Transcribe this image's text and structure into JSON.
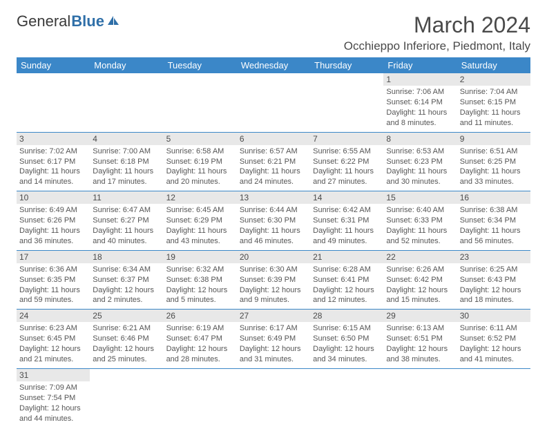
{
  "logo": {
    "text_general": "General",
    "text_blue": "Blue"
  },
  "title": "March 2024",
  "location": "Occhieppo Inferiore, Piedmont, Italy",
  "colors": {
    "header_bg": "#3b87c8",
    "header_text": "#ffffff",
    "daynum_bg": "#e8e8e8",
    "row_border": "#3b87c8",
    "body_text": "#555555",
    "title_text": "#4a4a4a"
  },
  "days_of_week": [
    "Sunday",
    "Monday",
    "Tuesday",
    "Wednesday",
    "Thursday",
    "Friday",
    "Saturday"
  ],
  "cells": [
    {
      "empty": true
    },
    {
      "empty": true
    },
    {
      "empty": true
    },
    {
      "empty": true
    },
    {
      "empty": true
    },
    {
      "day": "1",
      "sunrise": "Sunrise: 7:06 AM",
      "sunset": "Sunset: 6:14 PM",
      "daylight1": "Daylight: 11 hours",
      "daylight2": "and 8 minutes."
    },
    {
      "day": "2",
      "sunrise": "Sunrise: 7:04 AM",
      "sunset": "Sunset: 6:15 PM",
      "daylight1": "Daylight: 11 hours",
      "daylight2": "and 11 minutes."
    },
    {
      "day": "3",
      "sunrise": "Sunrise: 7:02 AM",
      "sunset": "Sunset: 6:17 PM",
      "daylight1": "Daylight: 11 hours",
      "daylight2": "and 14 minutes."
    },
    {
      "day": "4",
      "sunrise": "Sunrise: 7:00 AM",
      "sunset": "Sunset: 6:18 PM",
      "daylight1": "Daylight: 11 hours",
      "daylight2": "and 17 minutes."
    },
    {
      "day": "5",
      "sunrise": "Sunrise: 6:58 AM",
      "sunset": "Sunset: 6:19 PM",
      "daylight1": "Daylight: 11 hours",
      "daylight2": "and 20 minutes."
    },
    {
      "day": "6",
      "sunrise": "Sunrise: 6:57 AM",
      "sunset": "Sunset: 6:21 PM",
      "daylight1": "Daylight: 11 hours",
      "daylight2": "and 24 minutes."
    },
    {
      "day": "7",
      "sunrise": "Sunrise: 6:55 AM",
      "sunset": "Sunset: 6:22 PM",
      "daylight1": "Daylight: 11 hours",
      "daylight2": "and 27 minutes."
    },
    {
      "day": "8",
      "sunrise": "Sunrise: 6:53 AM",
      "sunset": "Sunset: 6:23 PM",
      "daylight1": "Daylight: 11 hours",
      "daylight2": "and 30 minutes."
    },
    {
      "day": "9",
      "sunrise": "Sunrise: 6:51 AM",
      "sunset": "Sunset: 6:25 PM",
      "daylight1": "Daylight: 11 hours",
      "daylight2": "and 33 minutes."
    },
    {
      "day": "10",
      "sunrise": "Sunrise: 6:49 AM",
      "sunset": "Sunset: 6:26 PM",
      "daylight1": "Daylight: 11 hours",
      "daylight2": "and 36 minutes."
    },
    {
      "day": "11",
      "sunrise": "Sunrise: 6:47 AM",
      "sunset": "Sunset: 6:27 PM",
      "daylight1": "Daylight: 11 hours",
      "daylight2": "and 40 minutes."
    },
    {
      "day": "12",
      "sunrise": "Sunrise: 6:45 AM",
      "sunset": "Sunset: 6:29 PM",
      "daylight1": "Daylight: 11 hours",
      "daylight2": "and 43 minutes."
    },
    {
      "day": "13",
      "sunrise": "Sunrise: 6:44 AM",
      "sunset": "Sunset: 6:30 PM",
      "daylight1": "Daylight: 11 hours",
      "daylight2": "and 46 minutes."
    },
    {
      "day": "14",
      "sunrise": "Sunrise: 6:42 AM",
      "sunset": "Sunset: 6:31 PM",
      "daylight1": "Daylight: 11 hours",
      "daylight2": "and 49 minutes."
    },
    {
      "day": "15",
      "sunrise": "Sunrise: 6:40 AM",
      "sunset": "Sunset: 6:33 PM",
      "daylight1": "Daylight: 11 hours",
      "daylight2": "and 52 minutes."
    },
    {
      "day": "16",
      "sunrise": "Sunrise: 6:38 AM",
      "sunset": "Sunset: 6:34 PM",
      "daylight1": "Daylight: 11 hours",
      "daylight2": "and 56 minutes."
    },
    {
      "day": "17",
      "sunrise": "Sunrise: 6:36 AM",
      "sunset": "Sunset: 6:35 PM",
      "daylight1": "Daylight: 11 hours",
      "daylight2": "and 59 minutes."
    },
    {
      "day": "18",
      "sunrise": "Sunrise: 6:34 AM",
      "sunset": "Sunset: 6:37 PM",
      "daylight1": "Daylight: 12 hours",
      "daylight2": "and 2 minutes."
    },
    {
      "day": "19",
      "sunrise": "Sunrise: 6:32 AM",
      "sunset": "Sunset: 6:38 PM",
      "daylight1": "Daylight: 12 hours",
      "daylight2": "and 5 minutes."
    },
    {
      "day": "20",
      "sunrise": "Sunrise: 6:30 AM",
      "sunset": "Sunset: 6:39 PM",
      "daylight1": "Daylight: 12 hours",
      "daylight2": "and 9 minutes."
    },
    {
      "day": "21",
      "sunrise": "Sunrise: 6:28 AM",
      "sunset": "Sunset: 6:41 PM",
      "daylight1": "Daylight: 12 hours",
      "daylight2": "and 12 minutes."
    },
    {
      "day": "22",
      "sunrise": "Sunrise: 6:26 AM",
      "sunset": "Sunset: 6:42 PM",
      "daylight1": "Daylight: 12 hours",
      "daylight2": "and 15 minutes."
    },
    {
      "day": "23",
      "sunrise": "Sunrise: 6:25 AM",
      "sunset": "Sunset: 6:43 PM",
      "daylight1": "Daylight: 12 hours",
      "daylight2": "and 18 minutes."
    },
    {
      "day": "24",
      "sunrise": "Sunrise: 6:23 AM",
      "sunset": "Sunset: 6:45 PM",
      "daylight1": "Daylight: 12 hours",
      "daylight2": "and 21 minutes."
    },
    {
      "day": "25",
      "sunrise": "Sunrise: 6:21 AM",
      "sunset": "Sunset: 6:46 PM",
      "daylight1": "Daylight: 12 hours",
      "daylight2": "and 25 minutes."
    },
    {
      "day": "26",
      "sunrise": "Sunrise: 6:19 AM",
      "sunset": "Sunset: 6:47 PM",
      "daylight1": "Daylight: 12 hours",
      "daylight2": "and 28 minutes."
    },
    {
      "day": "27",
      "sunrise": "Sunrise: 6:17 AM",
      "sunset": "Sunset: 6:49 PM",
      "daylight1": "Daylight: 12 hours",
      "daylight2": "and 31 minutes."
    },
    {
      "day": "28",
      "sunrise": "Sunrise: 6:15 AM",
      "sunset": "Sunset: 6:50 PM",
      "daylight1": "Daylight: 12 hours",
      "daylight2": "and 34 minutes."
    },
    {
      "day": "29",
      "sunrise": "Sunrise: 6:13 AM",
      "sunset": "Sunset: 6:51 PM",
      "daylight1": "Daylight: 12 hours",
      "daylight2": "and 38 minutes."
    },
    {
      "day": "30",
      "sunrise": "Sunrise: 6:11 AM",
      "sunset": "Sunset: 6:52 PM",
      "daylight1": "Daylight: 12 hours",
      "daylight2": "and 41 minutes."
    },
    {
      "day": "31",
      "sunrise": "Sunrise: 7:09 AM",
      "sunset": "Sunset: 7:54 PM",
      "daylight1": "Daylight: 12 hours",
      "daylight2": "and 44 minutes."
    },
    {
      "empty": true
    },
    {
      "empty": true
    },
    {
      "empty": true
    },
    {
      "empty": true
    },
    {
      "empty": true
    },
    {
      "empty": true
    }
  ]
}
